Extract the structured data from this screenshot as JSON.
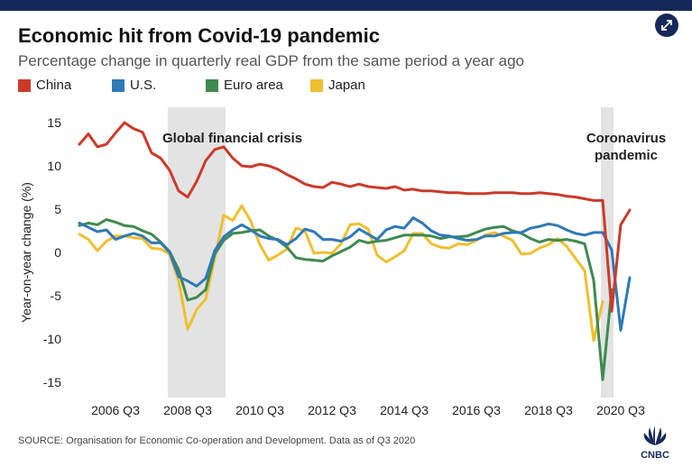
{
  "header": {
    "title": "Economic hit from Covid-19 pandemic",
    "subtitle": "Percentage change in quarterly real GDP from the same period a year ago",
    "expand_icon": "expand-arrows-icon"
  },
  "footer": {
    "source": "SOURCE: Organisation for Economic Co-operation and Development. Data as of Q3 2020",
    "logo_text": "CNBC",
    "logo_icon": "peacock-logo-icon"
  },
  "colors": {
    "china": "#cc3a2a",
    "us": "#2f79b8",
    "euro": "#3f8a4f",
    "japan": "#f0bf2e",
    "shade": "#e3e3e3",
    "brand": "#15295b"
  },
  "chart_data": {
    "type": "line",
    "title": "Economic hit from Covid-19 pandemic",
    "subtitle": "Percentage change in quarterly real GDP from the same period a year ago",
    "ylabel": "Year-on-year change (%)",
    "xlabel": "",
    "ylim": [
      -16,
      16
    ],
    "yticks": [
      15,
      10,
      5,
      0,
      -5,
      -10,
      -15
    ],
    "legend_position": "top-left",
    "grid": false,
    "x_start_quarter": "2005 Q3",
    "x_tick_labels": [
      "2006 Q3",
      "2008 Q3",
      "2010 Q3",
      "2012 Q3",
      "2014 Q3",
      "2016 Q3",
      "2018 Q3",
      "2020 Q3"
    ],
    "annotations": [
      {
        "label": "Global financial crisis",
        "from": "2008 Q1",
        "to": "2009 Q3"
      },
      {
        "label": "Coronavirus pandemic",
        "from": "2020 Q1",
        "to": "2020 Q2"
      }
    ],
    "series": [
      {
        "name": "China",
        "color_key": "china",
        "values": [
          12.5,
          13.7,
          12.2,
          12.5,
          13.8,
          15.0,
          14.3,
          13.9,
          11.5,
          10.9,
          9.5,
          7.1,
          6.4,
          8.2,
          10.6,
          11.9,
          12.2,
          10.9,
          10.0,
          9.9,
          10.2,
          10.0,
          9.6,
          9.0,
          8.5,
          7.9,
          7.6,
          7.5,
          8.1,
          7.9,
          7.6,
          7.9,
          7.6,
          7.5,
          7.4,
          7.6,
          7.2,
          7.3,
          7.1,
          7.1,
          7.0,
          6.9,
          6.9,
          6.8,
          6.8,
          6.8,
          6.9,
          6.9,
          6.9,
          6.8,
          6.8,
          6.9,
          6.8,
          6.7,
          6.5,
          6.4,
          6.2,
          6.0,
          6.0,
          -6.8,
          3.2,
          4.9
        ]
      },
      {
        "name": "U.S.",
        "color_key": "us",
        "values": [
          3.4,
          2.9,
          2.4,
          2.6,
          1.5,
          1.9,
          2.2,
          1.9,
          1.1,
          1.1,
          0.0,
          -2.8,
          -3.3,
          -3.9,
          -3.0,
          0.2,
          1.8,
          2.6,
          3.2,
          2.6,
          1.9,
          1.6,
          1.5,
          0.9,
          1.6,
          2.7,
          2.4,
          1.5,
          1.5,
          1.3,
          1.8,
          2.7,
          2.1,
          1.5,
          2.6,
          3.0,
          2.8,
          4.0,
          3.4,
          2.5,
          2.0,
          1.9,
          1.6,
          1.4,
          1.5,
          1.9,
          1.9,
          2.2,
          2.3,
          2.3,
          2.8,
          3.0,
          3.3,
          3.1,
          2.6,
          2.2,
          2.0,
          2.3,
          2.3,
          0.3,
          -9.0,
          -2.9
        ]
      },
      {
        "name": "Euro area",
        "color_key": "euro",
        "values": [
          3.1,
          3.4,
          3.2,
          3.8,
          3.5,
          3.1,
          3.0,
          2.5,
          2.1,
          1.2,
          0.1,
          -2.0,
          -5.5,
          -5.2,
          -4.3,
          -0.2,
          1.4,
          2.2,
          2.3,
          2.5,
          2.6,
          1.9,
          1.4,
          0.6,
          -0.6,
          -0.8,
          -0.9,
          -1.0,
          -0.4,
          0.1,
          0.6,
          1.4,
          1.1,
          1.3,
          1.4,
          1.7,
          2.0,
          2.0,
          2.0,
          1.9,
          1.6,
          1.8,
          1.8,
          1.9,
          2.3,
          2.7,
          2.9,
          3.0,
          2.5,
          2.2,
          1.6,
          1.2,
          1.5,
          1.4,
          1.5,
          1.3,
          1.0,
          -3.2,
          -14.7,
          -4.3
        ]
      },
      {
        "name": "Japan",
        "color_key": "japan",
        "values": [
          2.1,
          1.5,
          0.2,
          1.3,
          1.9,
          1.9,
          1.7,
          1.6,
          0.5,
          0.4,
          -0.2,
          -3.3,
          -8.9,
          -6.6,
          -5.4,
          -0.7,
          4.3,
          3.7,
          5.4,
          3.6,
          0.9,
          -0.9,
          -0.3,
          0.4,
          2.8,
          2.5,
          -0.1,
          0.0,
          -0.1,
          1.0,
          3.2,
          3.3,
          2.7,
          -0.3,
          -1.1,
          -0.5,
          0.2,
          2.2,
          2.2,
          1.0,
          0.6,
          0.5,
          1.0,
          0.9,
          1.4,
          2.0,
          2.3,
          1.9,
          1.4,
          -0.2,
          -0.1,
          0.5,
          0.9,
          1.6,
          0.7,
          -0.7,
          -2.1,
          -10.2,
          -5.7
        ]
      }
    ]
  }
}
